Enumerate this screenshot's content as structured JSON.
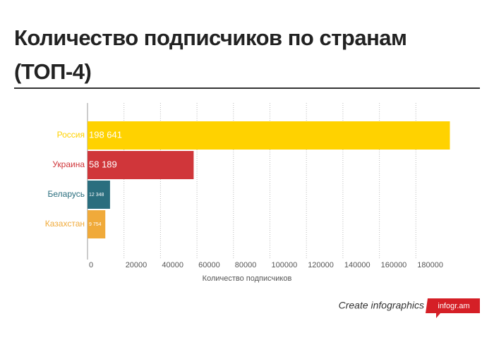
{
  "chart_data": {
    "type": "bar",
    "orientation": "horizontal",
    "title": "Количество подписчиков по странам (ТОП-4)",
    "categories": [
      "Россия",
      "Украина",
      "Беларусь",
      "Казахстан"
    ],
    "values": [
      198641,
      58189,
      12348,
      9754
    ],
    "value_labels": [
      "198 641",
      "58 189",
      "12 348",
      "9 754"
    ],
    "colors": [
      "#ffd200",
      "#d0363a",
      "#2a6e7e",
      "#f0aa3a"
    ],
    "xlim": [
      0,
      200000
    ],
    "xticks": [
      0,
      20000,
      40000,
      60000,
      80000,
      100000,
      120000,
      140000,
      160000,
      180000
    ],
    "xlabel": "Количество подписчиков",
    "grid": true
  },
  "footer": {
    "text": "Create infographics",
    "brand": "infogr.am"
  }
}
